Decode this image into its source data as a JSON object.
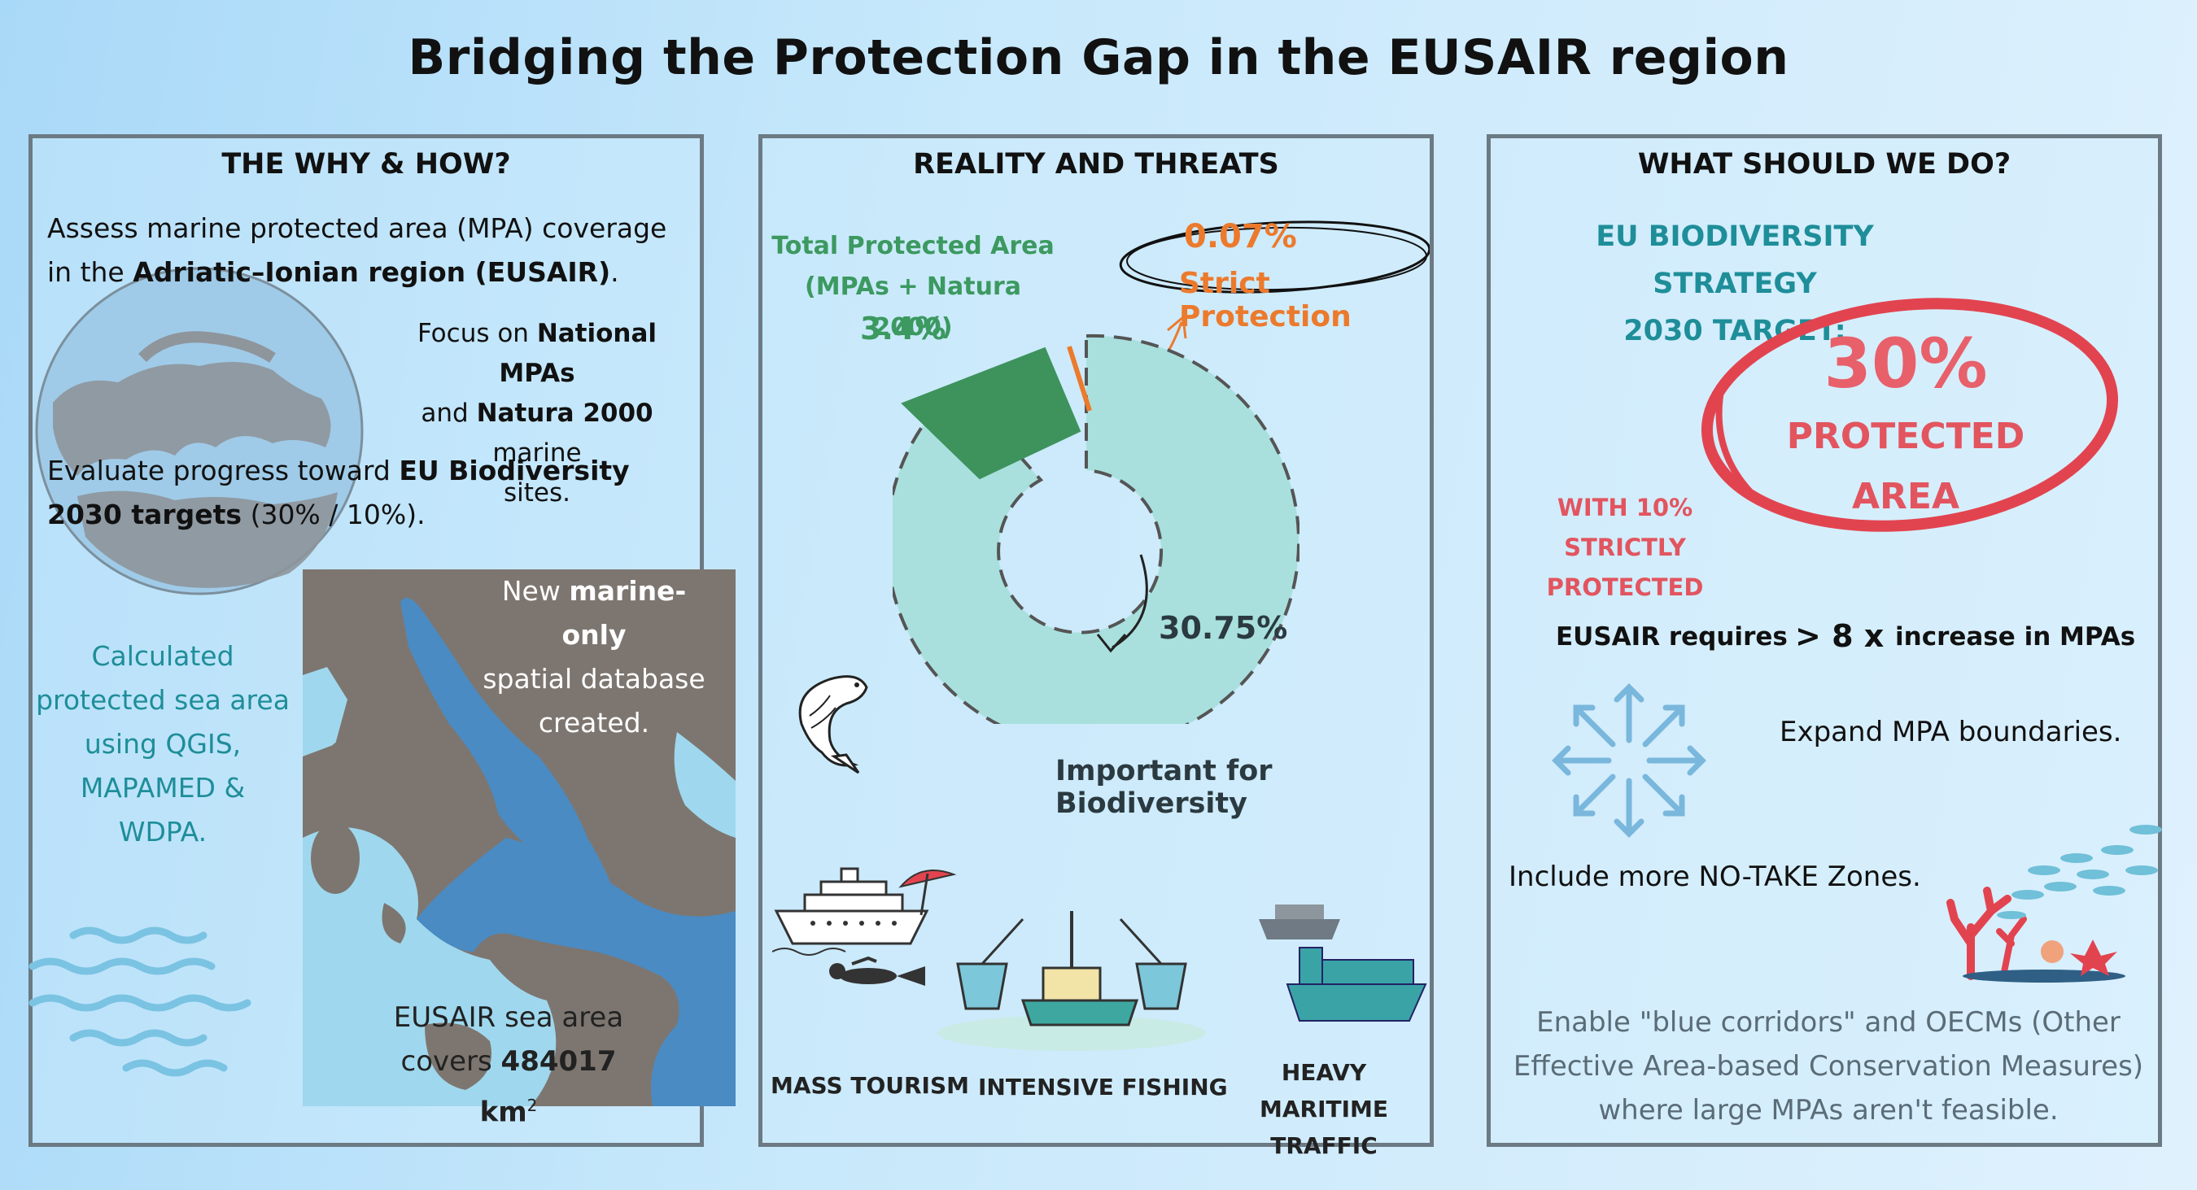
{
  "title": "Bridging the Protection Gap in the EUSAIR region",
  "colors": {
    "background": "#c7e8fb",
    "panel_border": "#6c7a84",
    "teal": "#1e8e99",
    "green": "#3c9960",
    "orange": "#ec7a2c",
    "red": "#e2444f",
    "donut_fill": "#a9e0de",
    "map_land": "#7d7670",
    "map_sea": "#9fd8ee",
    "map_eusair": "#4a8bc3"
  },
  "panel1": {
    "title": "THE WHY & HOW?",
    "assess_1": "Assess marine protected area (MPA) coverage",
    "assess_2a": "in the ",
    "assess_2b": "Adriatic–Ionian region (EUSAIR)",
    "assess_2c": ".",
    "focus_1a": "Focus on ",
    "focus_1b": "National MPAs",
    "focus_2a": "and ",
    "focus_2b": "Natura 2000",
    "focus_2c": " marine",
    "focus_3": "sites.",
    "evaluate_1a": "Evaluate progress toward ",
    "evaluate_1b": "EU Biodiversity",
    "evaluate_2a": "2030 targets",
    "evaluate_2b": " (30% / 10%).",
    "calc_1": "Calculated",
    "calc_2": "protected sea area",
    "calc_3": "using QGIS,",
    "calc_4": "MAPAMED &",
    "calc_5": "WDPA.",
    "db_1a": "New ",
    "db_1b": "marine-only",
    "db_2": "spatial database",
    "db_3": "created.",
    "area_1": "EUSAIR sea area",
    "area_2a": "covers ",
    "area_2b": "484017 km",
    "area_sup": "2",
    "icons": [
      "globe-icon",
      "map-icon",
      "waves-icon"
    ]
  },
  "panel2": {
    "title": "REALITY AND THREATS",
    "total_label_1": "Total Protected Area",
    "total_label_2": "(MPAs + Natura 2000)",
    "total_pct": "3.4%",
    "strict_pct": "0.07%",
    "strict_label": "Strict Protection",
    "biodiv_pct": "30.75%",
    "biodiv_label": "Important for Biodiversity",
    "threat_tourism": "MASS TOURISM",
    "threat_fishing": "INTENSIVE FISHING",
    "threat_traffic_1": "HEAVY MARITIME",
    "threat_traffic_2": "TRAFFIC",
    "icons": [
      "fish-icon",
      "cruise-ship-icon",
      "umbrella-icon",
      "diver-icon",
      "trawler-icon",
      "cargo-ship-icon"
    ]
  },
  "panel3": {
    "title": "WHAT SHOULD WE DO?",
    "strategy_1": "EU BIODIVERSITY STRATEGY",
    "strategy_2": "2030 TARGET:",
    "target_pct": "30%",
    "target_1": "PROTECTED",
    "target_2": "AREA",
    "strict_1": "WITH 10%",
    "strict_2": "STRICTLY PROTECTED",
    "requires_a": "EUSAIR requires",
    "requires_b": "> 8 x",
    "requires_c": "increase in MPAs",
    "expand": "Expand MPA boundaries.",
    "notake": "Include more NO-TAKE Zones.",
    "enable_1": "Enable \"blue corridors\" and OECMs (Other",
    "enable_2": "Effective Area-based Conservation Measures)",
    "enable_3": "where large MPAs aren't feasible.",
    "icons": [
      "expand-arrows-icon",
      "coral-reef-icon",
      "fish-school-icon"
    ]
  }
}
